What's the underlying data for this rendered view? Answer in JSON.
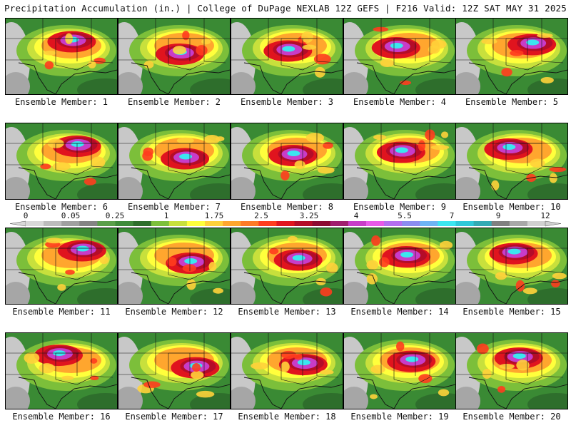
{
  "header": {
    "left_title": "Precipitation Accumulation (in.) | College of DuPage NEXLAB",
    "right_title": "12Z GEFS | F216 Valid: 12Z SAT MAY 31 2025"
  },
  "colorbar": {
    "tick_labels": [
      "0",
      "0.05",
      "0.25",
      "1",
      "1.75",
      "2.5",
      "3.25",
      "4",
      "5.5",
      "7",
      "9",
      "12"
    ],
    "colors": [
      "#d8d8d8",
      "#bcbcbc",
      "#a0a0a0",
      "#848484",
      "#5a9e4a",
      "#3f8a3a",
      "#2e6e2c",
      "#7cbf3a",
      "#c8e03c",
      "#ffff3c",
      "#ffd23a",
      "#ffa62e",
      "#ff7a26",
      "#ff3c1e",
      "#e0141e",
      "#b40c28",
      "#8c0a32",
      "#a01e6e",
      "#c83cc8",
      "#e85ae8",
      "#b46ef0",
      "#8c8cf0",
      "#6eb4f5",
      "#3ce6f0",
      "#30c8d8",
      "#34aab4",
      "#808080",
      "#a8a8a8",
      "#d0d0d0"
    ]
  },
  "panels": [
    {
      "label": "Ensemble Member: 1"
    },
    {
      "label": "Ensemble Member: 2"
    },
    {
      "label": "Ensemble Member: 3"
    },
    {
      "label": "Ensemble Member: 4"
    },
    {
      "label": "Ensemble Member: 5"
    },
    {
      "label": "Ensemble Member: 6"
    },
    {
      "label": "Ensemble Member: 7"
    },
    {
      "label": "Ensemble Member: 8"
    },
    {
      "label": "Ensemble Member: 9"
    },
    {
      "label": "Ensemble Member: 10"
    },
    {
      "label": "Ensemble Member: 11"
    },
    {
      "label": "Ensemble Member: 12"
    },
    {
      "label": "Ensemble Member: 13"
    },
    {
      "label": "Ensemble Member: 14"
    },
    {
      "label": "Ensemble Member: 15"
    },
    {
      "label": "Ensemble Member: 16"
    },
    {
      "label": "Ensemble Member: 17"
    },
    {
      "label": "Ensemble Member: 18"
    },
    {
      "label": "Ensemble Member: 19"
    },
    {
      "label": "Ensemble Member: 20"
    }
  ]
}
